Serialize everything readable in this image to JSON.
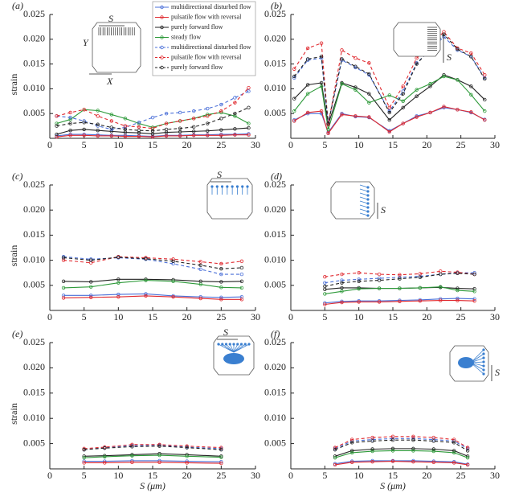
{
  "chart_data": [
    {
      "type": "line",
      "title": "(a)",
      "ylabel": "strain",
      "xlim": [
        0,
        30
      ],
      "ylim": [
        0,
        0.025
      ],
      "xticks": [
        0,
        5,
        10,
        15,
        20,
        25,
        30
      ],
      "yticks": [
        0.005,
        {
          "value": 0.01,
          "label": "0.010"
        },
        0.015,
        {
          "value": 0.02,
          "label": "0.020"
        },
        0.025
      ],
      "legend": "upper right",
      "inset_labels": [
        "S",
        "Y",
        "X"
      ],
      "x": [
        1,
        3,
        5,
        7,
        9,
        11,
        13,
        15,
        17,
        19,
        21,
        23,
        25,
        27,
        29
      ],
      "series": [
        {
          "name": "multidirectional disturbed flow",
          "color": "#4a6fd8",
          "dash": false,
          "values": [
            0.0005,
            0.0008,
            0.0008,
            0.0007,
            0.0006,
            0.0006,
            0.0005,
            0.0004,
            0.0006,
            0.0006,
            0.0007,
            0.0007,
            0.0008,
            0.0008,
            0.0009
          ]
        },
        {
          "name": "pulsatile flow with reversal",
          "color": "#e0282e",
          "dash": false,
          "values": [
            0.0003,
            0.0006,
            0.0006,
            0.0005,
            0.0005,
            0.0004,
            0.0004,
            0.0003,
            0.0005,
            0.0005,
            0.0006,
            0.0006,
            0.0006,
            0.0007,
            0.0007
          ]
        },
        {
          "name": "purely forward flow",
          "color": "#222222",
          "dash": false,
          "values": [
            0.0008,
            0.0016,
            0.0018,
            0.0016,
            0.0014,
            0.0012,
            0.0011,
            0.0009,
            0.0012,
            0.0013,
            0.0014,
            0.0015,
            0.0017,
            0.0019,
            0.0021
          ]
        },
        {
          "name": "steady flow",
          "color": "#2e9a3a",
          "dash": false,
          "values": [
            0.003,
            0.0038,
            0.0058,
            0.0056,
            0.0048,
            0.004,
            0.003,
            0.0022,
            0.003,
            0.0035,
            0.004,
            0.0048,
            0.0052,
            0.0045,
            0.003
          ]
        },
        {
          "name": "multidirectional disturbed flow",
          "color": "#4a6fd8",
          "dash": true,
          "values": [
            0.0045,
            0.0042,
            0.0035,
            0.0025,
            0.0018,
            0.0022,
            0.0032,
            0.0042,
            0.005,
            0.0052,
            0.0055,
            0.006,
            0.0068,
            0.0082,
            0.0095
          ]
        },
        {
          "name": "pulsatile flow with reversal",
          "color": "#e0282e",
          "dash": true,
          "values": [
            0.0045,
            0.0052,
            0.0058,
            0.0045,
            0.0035,
            0.0025,
            0.0023,
            0.002,
            0.003,
            0.0035,
            0.004,
            0.0045,
            0.0055,
            0.0072,
            0.0102
          ]
        },
        {
          "name": "purely forward flow",
          "color": "#222222",
          "dash": true,
          "values": [
            0.0025,
            0.003,
            0.0032,
            0.0028,
            0.0022,
            0.0018,
            0.0016,
            0.0015,
            0.0018,
            0.002,
            0.0023,
            0.003,
            0.004,
            0.005,
            0.0062
          ]
        }
      ]
    },
    {
      "type": "line",
      "title": "(b)",
      "xlim": [
        0,
        30
      ],
      "ylim": [
        0,
        0.025
      ],
      "xticks": [
        0,
        5,
        10,
        15,
        20,
        25,
        30
      ],
      "yticks": [
        0.005,
        {
          "value": 0.01,
          "label": "0.010"
        },
        0.015,
        {
          "value": 0.02,
          "label": "0.020"
        },
        0.025
      ],
      "inset_labels": [
        "S"
      ],
      "x": [
        0.5,
        2.5,
        4.5,
        5.5,
        7.5,
        9.5,
        11.5,
        14.5,
        16.5,
        18.5,
        20.5,
        22.5,
        24.5,
        26.5,
        28.5
      ],
      "series": [
        {
          "color": "#4a6fd8",
          "dash": false,
          "values": [
            0.0037,
            0.005,
            0.005,
            0.0012,
            0.005,
            0.0044,
            0.0042,
            0.0015,
            0.003,
            0.0045,
            0.0052,
            0.0062,
            0.0058,
            0.0052,
            0.0038
          ]
        },
        {
          "color": "#e0282e",
          "dash": false,
          "values": [
            0.0035,
            0.0052,
            0.0055,
            0.001,
            0.0048,
            0.0045,
            0.0043,
            0.0013,
            0.003,
            0.0043,
            0.0052,
            0.0064,
            0.0058,
            0.0053,
            0.0037
          ]
        },
        {
          "color": "#222222",
          "dash": false,
          "values": [
            0.008,
            0.0108,
            0.0112,
            0.0028,
            0.0112,
            0.0103,
            0.009,
            0.0037,
            0.0062,
            0.0085,
            0.0105,
            0.0128,
            0.0118,
            0.0105,
            0.0078
          ]
        },
        {
          "color": "#2e9a3a",
          "dash": false,
          "values": [
            0.0055,
            0.009,
            0.0105,
            0.0018,
            0.011,
            0.0098,
            0.0072,
            0.0087,
            0.0075,
            0.0098,
            0.011,
            0.0125,
            0.0118,
            0.0088,
            0.0055
          ]
        },
        {
          "color": "#4a6fd8",
          "dash": true,
          "values": [
            0.0122,
            0.0158,
            0.0162,
            0.003,
            0.0158,
            0.0143,
            0.0128,
            0.0055,
            0.0095,
            0.0152,
            0.0178,
            0.0205,
            0.0178,
            0.0165,
            0.0122
          ]
        },
        {
          "color": "#e0282e",
          "dash": true,
          "values": [
            0.014,
            0.0182,
            0.0192,
            0.0028,
            0.0178,
            0.0162,
            0.0152,
            0.0062,
            0.0105,
            0.0162,
            0.0188,
            0.0215,
            0.0182,
            0.0172,
            0.0128
          ]
        },
        {
          "color": "#222222",
          "dash": true,
          "values": [
            0.0125,
            0.016,
            0.0165,
            0.003,
            0.016,
            0.0145,
            0.013,
            0.0052,
            0.009,
            0.015,
            0.018,
            0.021,
            0.018,
            0.0165,
            0.012
          ]
        }
      ]
    },
    {
      "type": "line",
      "title": "(c)",
      "ylabel": "strain",
      "xlim": [
        0,
        30
      ],
      "ylim": [
        0,
        0.025
      ],
      "xticks": [
        0,
        5,
        10,
        15,
        20,
        25,
        30
      ],
      "yticks": [
        0.005,
        {
          "value": 0.01,
          "label": "0.010"
        },
        0.015,
        {
          "value": 0.02,
          "label": "0.020"
        },
        0.025
      ],
      "inset_labels": [
        "S"
      ],
      "x": [
        2,
        6,
        10,
        14,
        18,
        22,
        25,
        28
      ],
      "series": [
        {
          "color": "#4a6fd8",
          "dash": false,
          "values": [
            0.003,
            0.003,
            0.0032,
            0.0033,
            0.0029,
            0.0027,
            0.0026,
            0.0027
          ]
        },
        {
          "color": "#e0282e",
          "dash": false,
          "values": [
            0.0025,
            0.0026,
            0.0027,
            0.0029,
            0.0027,
            0.0024,
            0.0022,
            0.0022
          ]
        },
        {
          "color": "#222222",
          "dash": false,
          "values": [
            0.0058,
            0.0057,
            0.0062,
            0.0062,
            0.0061,
            0.0058,
            0.0057,
            0.0058
          ]
        },
        {
          "color": "#2e9a3a",
          "dash": false,
          "values": [
            0.0045,
            0.0047,
            0.0055,
            0.006,
            0.0058,
            0.0052,
            0.0046,
            0.0045
          ]
        },
        {
          "color": "#4a6fd8",
          "dash": true,
          "values": [
            0.0107,
            0.0102,
            0.0105,
            0.0102,
            0.0093,
            0.0082,
            0.0072,
            0.0072
          ]
        },
        {
          "color": "#e0282e",
          "dash": true,
          "values": [
            0.01,
            0.0095,
            0.0107,
            0.0105,
            0.0102,
            0.0097,
            0.0093,
            0.0098
          ]
        },
        {
          "color": "#222222",
          "dash": true,
          "values": [
            0.0105,
            0.01,
            0.0106,
            0.0103,
            0.0098,
            0.009,
            0.0083,
            0.0085
          ]
        }
      ]
    },
    {
      "type": "line",
      "title": "(d)",
      "xlim": [
        0,
        30
      ],
      "ylim": [
        0,
        0.025
      ],
      "xticks": [
        0,
        5,
        10,
        15,
        20,
        25,
        30
      ],
      "yticks": [
        0.005,
        {
          "value": 0.01,
          "label": "0.010"
        },
        0.015,
        {
          "value": 0.02,
          "label": "0.020"
        },
        0.025
      ],
      "inset_labels": [
        "S"
      ],
      "x": [
        5,
        7.5,
        10,
        13,
        16,
        19,
        22,
        24.5,
        27
      ],
      "series": [
        {
          "color": "#4a6fd8",
          "dash": false,
          "values": [
            0.0015,
            0.0018,
            0.0019,
            0.0019,
            0.002,
            0.0021,
            0.0023,
            0.0024,
            0.0023
          ]
        },
        {
          "color": "#e0282e",
          "dash": false,
          "values": [
            0.0012,
            0.0016,
            0.0017,
            0.0017,
            0.0018,
            0.0019,
            0.002,
            0.002,
            0.0019
          ]
        },
        {
          "color": "#222222",
          "dash": false,
          "values": [
            0.0042,
            0.0045,
            0.0045,
            0.0044,
            0.0044,
            0.0045,
            0.0046,
            0.0044,
            0.0043
          ]
        },
        {
          "color": "#2e9a3a",
          "dash": false,
          "values": [
            0.0033,
            0.0038,
            0.0043,
            0.0044,
            0.0044,
            0.0045,
            0.0047,
            0.004,
            0.0038
          ]
        },
        {
          "color": "#4a6fd8",
          "dash": true,
          "values": [
            0.0055,
            0.006,
            0.0062,
            0.0064,
            0.0066,
            0.0068,
            0.0072,
            0.0075,
            0.0075
          ]
        },
        {
          "color": "#e0282e",
          "dash": true,
          "values": [
            0.0067,
            0.0072,
            0.0075,
            0.0072,
            0.0071,
            0.0073,
            0.0078,
            0.0076,
            0.0072
          ]
        },
        {
          "color": "#222222",
          "dash": true,
          "values": [
            0.0048,
            0.0055,
            0.0058,
            0.006,
            0.0063,
            0.0066,
            0.0072,
            0.0074,
            0.0072
          ]
        }
      ]
    },
    {
      "type": "line",
      "title": "(e)",
      "ylabel": "strain",
      "xlabel": "S (μm)",
      "xlim": [
        0,
        30
      ],
      "ylim": [
        0,
        0.025
      ],
      "xticks": [
        0,
        5,
        10,
        15,
        20,
        25,
        30
      ],
      "yticks": [
        0.005,
        {
          "value": 0.01,
          "label": "0.010"
        },
        0.015,
        {
          "value": 0.02,
          "label": "0.020"
        },
        0.025
      ],
      "inset_labels": [
        "S"
      ],
      "x": [
        5,
        8,
        12,
        16,
        20,
        25
      ],
      "series": [
        {
          "color": "#4a6fd8",
          "dash": false,
          "values": [
            0.0015,
            0.0015,
            0.0016,
            0.0016,
            0.0015,
            0.0014
          ]
        },
        {
          "color": "#e0282e",
          "dash": false,
          "values": [
            0.0012,
            0.0012,
            0.0013,
            0.0013,
            0.0012,
            0.0011
          ]
        },
        {
          "color": "#222222",
          "dash": false,
          "values": [
            0.0025,
            0.0026,
            0.0028,
            0.003,
            0.0028,
            0.0025
          ]
        },
        {
          "color": "#2e9a3a",
          "dash": false,
          "values": [
            0.0022,
            0.0024,
            0.0026,
            0.0027,
            0.0025,
            0.0023
          ]
        },
        {
          "color": "#4a6fd8",
          "dash": true,
          "values": [
            0.0038,
            0.0042,
            0.0046,
            0.0047,
            0.0043,
            0.004
          ]
        },
        {
          "color": "#e0282e",
          "dash": true,
          "values": [
            0.004,
            0.0043,
            0.0048,
            0.0048,
            0.0045,
            0.0042
          ]
        },
        {
          "color": "#222222",
          "dash": true,
          "values": [
            0.0038,
            0.0041,
            0.0044,
            0.0045,
            0.0042,
            0.0038
          ]
        }
      ]
    },
    {
      "type": "line",
      "title": "(f)",
      "xlabel": "S (μm)",
      "xlim": [
        0,
        30
      ],
      "ylim": [
        0,
        0.025
      ],
      "xticks": [
        0,
        5,
        10,
        15,
        20,
        25,
        30
      ],
      "yticks": [
        0.005,
        {
          "value": 0.01,
          "label": "0.010"
        },
        0.015,
        {
          "value": 0.02,
          "label": "0.020"
        },
        0.025
      ],
      "inset_labels": [
        "S"
      ],
      "x": [
        6.5,
        9,
        12,
        15,
        18,
        21,
        24,
        26
      ],
      "series": [
        {
          "color": "#4a6fd8",
          "dash": false,
          "values": [
            0.001,
            0.0015,
            0.0016,
            0.0016,
            0.0016,
            0.0015,
            0.0014,
            0.0009
          ]
        },
        {
          "color": "#e0282e",
          "dash": false,
          "values": [
            0.0008,
            0.0013,
            0.0014,
            0.0015,
            0.0014,
            0.0013,
            0.0012,
            0.0008
          ]
        },
        {
          "color": "#222222",
          "dash": false,
          "values": [
            0.0025,
            0.0036,
            0.0039,
            0.004,
            0.004,
            0.0039,
            0.0036,
            0.0025
          ]
        },
        {
          "color": "#2e9a3a",
          "dash": false,
          "values": [
            0.0022,
            0.0032,
            0.0035,
            0.0036,
            0.0036,
            0.0035,
            0.0032,
            0.0022
          ]
        },
        {
          "color": "#4a6fd8",
          "dash": true,
          "values": [
            0.004,
            0.0055,
            0.0058,
            0.006,
            0.006,
            0.0058,
            0.0055,
            0.004
          ]
        },
        {
          "color": "#e0282e",
          "dash": true,
          "values": [
            0.0042,
            0.0058,
            0.0062,
            0.0064,
            0.0064,
            0.0062,
            0.0058,
            0.0042
          ]
        },
        {
          "color": "#222222",
          "dash": true,
          "values": [
            0.0038,
            0.0052,
            0.0055,
            0.0057,
            0.0057,
            0.0055,
            0.0052,
            0.0036
          ]
        }
      ]
    }
  ]
}
